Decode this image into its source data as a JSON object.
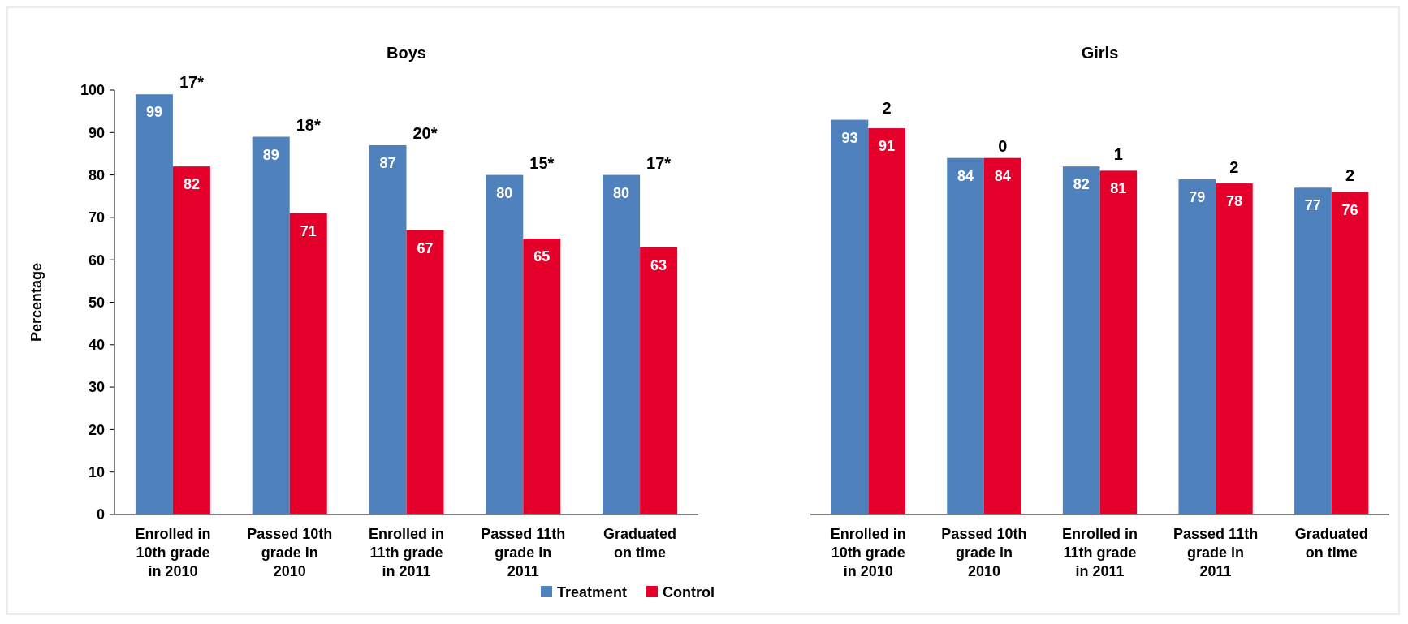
{
  "chart_data": [
    {
      "type": "bar",
      "title": "Boys",
      "ylabel": "Percentage",
      "categories": [
        "Enrolled in 10th grade in 2010",
        "Passed 10th grade in 2010",
        "Enrolled in 11th grade in 2011",
        "Passed 11th grade in 2011",
        "Graduated on time"
      ],
      "series": [
        {
          "name": "Treatment",
          "color": "#4f81bd",
          "values": [
            99,
            89,
            87,
            80,
            80
          ]
        },
        {
          "name": "Control",
          "color": "#e4002b",
          "values": [
            82,
            71,
            67,
            65,
            63
          ]
        }
      ],
      "ylim": [
        0,
        100
      ],
      "yticks": [
        0,
        10,
        20,
        30,
        40,
        50,
        60,
        70,
        80,
        90,
        100
      ],
      "data_labels": true,
      "legend": "bottom",
      "grid": false,
      "annotations": [
        {
          "text": "17*",
          "x": "Enrolled in 10th grade in 2010",
          "y": 99
        },
        {
          "text": "18*",
          "x": "Passed 10th grade in 2010",
          "y": 89
        },
        {
          "text": "20*",
          "x": "Enrolled in 11th grade in 2011",
          "y": 87
        },
        {
          "text": "15*",
          "x": "Passed 11th grade in 2011",
          "y": 80
        },
        {
          "text": "17*",
          "x": "Graduated on time",
          "y": 80
        }
      ]
    },
    {
      "type": "bar",
      "title": "Girls",
      "categories": [
        "Enrolled in 10th grade in 2010",
        "Passed 10th grade in 2010",
        "Enrolled in 11th grade in 2011",
        "Passed 11th grade in 2011",
        "Graduated on time"
      ],
      "series": [
        {
          "name": "Treatment",
          "color": "#4f81bd",
          "values": [
            93,
            84,
            82,
            79,
            77
          ]
        },
        {
          "name": "Control",
          "color": "#e4002b",
          "values": [
            91,
            84,
            81,
            78,
            76
          ]
        }
      ],
      "ylim": [
        0,
        100
      ],
      "data_labels": true,
      "tick_labels": "x",
      "grid": false,
      "annotations": [
        {
          "text": "2",
          "x": "Enrolled in 10th grade in 2010",
          "y": 93
        },
        {
          "text": "0",
          "x": "Passed 10th grade in 2010",
          "y": 84
        },
        {
          "text": "1",
          "x": "Enrolled in 11th grade in 2011",
          "y": 82
        },
        {
          "text": "2",
          "x": "Passed 11th grade in 2011",
          "y": 79
        },
        {
          "text": "2",
          "x": "Graduated on time",
          "y": 77
        }
      ]
    }
  ]
}
